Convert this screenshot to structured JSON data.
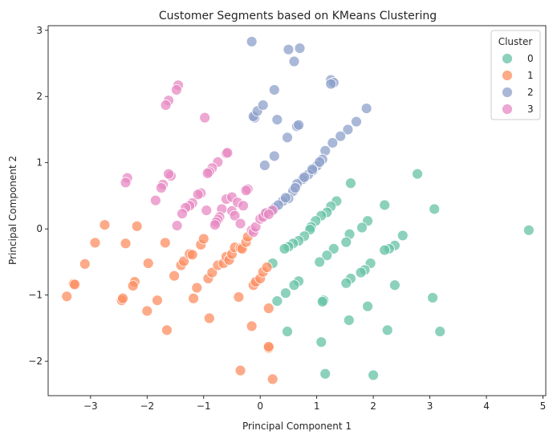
{
  "chart_data": {
    "type": "scatter",
    "title": "Customer Segments based on KMeans Clustering",
    "xlabel": "Principal Component 1",
    "ylabel": "Principal Component 2",
    "xlim": [
      -3.75,
      5.05
    ],
    "ylim": [
      -2.52,
      3.07
    ],
    "x_ticks": [
      -3,
      -2,
      -1,
      0,
      1,
      2,
      3,
      4,
      5
    ],
    "y_ticks": [
      -2,
      -1,
      0,
      1,
      2,
      3
    ],
    "grid": false,
    "legend": {
      "title": "Cluster",
      "placement": "top-right"
    },
    "series": [
      {
        "name": "0",
        "color": "#66c2a5",
        "points": [
          [
            4.75,
            -0.02
          ],
          [
            2.78,
            0.83
          ],
          [
            3.08,
            0.3
          ],
          [
            3.05,
            -1.04
          ],
          [
            3.18,
            -1.55
          ],
          [
            2.38,
            -0.85
          ],
          [
            2.25,
            -1.53
          ],
          [
            2.2,
            0.36
          ],
          [
            2.52,
            -0.1
          ],
          [
            2.38,
            -0.25
          ],
          [
            2.28,
            -0.3
          ],
          [
            2.2,
            -0.32
          ],
          [
            1.95,
            -0.52
          ],
          [
            1.9,
            0.12
          ],
          [
            1.8,
            0.02
          ],
          [
            1.85,
            -0.62
          ],
          [
            1.78,
            -0.66
          ],
          [
            1.9,
            -1.17
          ],
          [
            2.0,
            -2.21
          ],
          [
            1.58,
            -0.08
          ],
          [
            1.52,
            -0.2
          ],
          [
            1.6,
            -0.75
          ],
          [
            1.52,
            -0.82
          ],
          [
            1.6,
            0.69
          ],
          [
            1.57,
            -1.38
          ],
          [
            1.35,
            0.42
          ],
          [
            1.25,
            0.34
          ],
          [
            1.18,
            0.25
          ],
          [
            1.08,
            0.2
          ],
          [
            0.98,
            0.12
          ],
          [
            0.9,
            0.03
          ],
          [
            1.3,
            -0.3
          ],
          [
            1.18,
            -0.4
          ],
          [
            1.05,
            -0.5
          ],
          [
            1.12,
            -1.08
          ],
          [
            1.1,
            -1.1
          ],
          [
            1.08,
            -1.71
          ],
          [
            1.15,
            -2.19
          ],
          [
            0.88,
            -0.01
          ],
          [
            0.78,
            -0.11
          ],
          [
            0.68,
            -0.18
          ],
          [
            0.58,
            -0.22
          ],
          [
            0.5,
            -0.27
          ],
          [
            0.43,
            -0.3
          ],
          [
            0.68,
            -0.79
          ],
          [
            0.6,
            -0.85
          ],
          [
            0.45,
            -0.97
          ],
          [
            0.3,
            -1.09
          ],
          [
            0.48,
            -1.55
          ],
          [
            0.22,
            -0.52
          ]
        ]
      },
      {
        "name": "1",
        "color": "#fc8d62",
        "points": [
          [
            -3.42,
            -1.02
          ],
          [
            -3.3,
            -0.83
          ],
          [
            -3.28,
            -0.84
          ],
          [
            -3.1,
            -0.53
          ],
          [
            -2.92,
            -0.21
          ],
          [
            -2.75,
            0.06
          ],
          [
            -2.45,
            -1.08
          ],
          [
            -2.43,
            -1.05
          ],
          [
            -2.38,
            -0.22
          ],
          [
            -2.22,
            -0.8
          ],
          [
            -2.25,
            -0.86
          ],
          [
            -2.18,
            0.04
          ],
          [
            -2.0,
            -1.24
          ],
          [
            -1.98,
            -0.52
          ],
          [
            -1.82,
            -1.08
          ],
          [
            -1.68,
            -0.21
          ],
          [
            -1.65,
            -1.53
          ],
          [
            -1.52,
            -0.71
          ],
          [
            -1.4,
            -0.55
          ],
          [
            -1.35,
            -0.49
          ],
          [
            -1.25,
            -0.38
          ],
          [
            -1.2,
            -0.39
          ],
          [
            -1.18,
            -1.05
          ],
          [
            -1.12,
            -0.89
          ],
          [
            -1.05,
            -0.24
          ],
          [
            -1.0,
            -0.15
          ],
          [
            -0.9,
            -1.35
          ],
          [
            -0.92,
            -0.75
          ],
          [
            -0.85,
            -0.66
          ],
          [
            -0.75,
            -0.55
          ],
          [
            -0.65,
            -0.52
          ],
          [
            -0.6,
            -0.42
          ],
          [
            -0.55,
            -0.47
          ],
          [
            -0.5,
            -0.38
          ],
          [
            -0.45,
            -0.28
          ],
          [
            -0.35,
            -0.29
          ],
          [
            -0.32,
            -0.3
          ],
          [
            -0.38,
            -1.03
          ],
          [
            -0.35,
            -2.14
          ],
          [
            -0.25,
            -0.2
          ],
          [
            -0.22,
            -0.12
          ],
          [
            -0.15,
            -1.47
          ],
          [
            -0.12,
            -0.85
          ],
          [
            -0.08,
            -0.8
          ],
          [
            0.0,
            -0.75
          ],
          [
            0.05,
            -0.65
          ],
          [
            0.12,
            -0.58
          ],
          [
            0.15,
            -1.8
          ],
          [
            0.15,
            -1.78
          ],
          [
            0.15,
            -1.2
          ],
          [
            0.22,
            -2.27
          ]
        ]
      },
      {
        "name": "2",
        "color": "#8da0cb",
        "points": [
          [
            -0.15,
            2.83
          ],
          [
            0.5,
            2.71
          ],
          [
            0.7,
            2.73
          ],
          [
            0.6,
            2.53
          ],
          [
            1.25,
            2.25
          ],
          [
            1.3,
            2.21
          ],
          [
            0.25,
            2.1
          ],
          [
            1.25,
            2.19
          ],
          [
            1.88,
            1.82
          ],
          [
            1.7,
            1.62
          ],
          [
            1.55,
            1.5
          ],
          [
            1.42,
            1.4
          ],
          [
            1.28,
            1.3
          ],
          [
            1.15,
            1.18
          ],
          [
            1.1,
            1.05
          ],
          [
            1.0,
            0.95
          ],
          [
            0.93,
            0.88
          ],
          [
            0.85,
            0.82
          ],
          [
            0.75,
            0.75
          ],
          [
            0.65,
            0.68
          ],
          [
            0.58,
            0.57
          ],
          [
            0.5,
            0.46
          ],
          [
            0.4,
            0.42
          ],
          [
            0.26,
            0.32
          ],
          [
            -0.1,
            1.68
          ],
          [
            -0.12,
            1.7
          ],
          [
            -0.05,
            1.78
          ],
          [
            0.05,
            1.87
          ],
          [
            0.3,
            1.65
          ],
          [
            0.48,
            1.38
          ],
          [
            0.65,
            1.55
          ],
          [
            0.68,
            1.57
          ],
          [
            0.25,
            1.1
          ],
          [
            0.08,
            0.96
          ],
          [
            1.05,
            1.01
          ],
          [
            0.92,
            0.9
          ],
          [
            0.78,
            0.78
          ],
          [
            0.62,
            0.62
          ],
          [
            0.45,
            0.47
          ],
          [
            0.32,
            0.36
          ],
          [
            0.2,
            0.28
          ],
          [
            0.08,
            0.22
          ]
        ]
      },
      {
        "name": "3",
        "color": "#e78ac3",
        "points": [
          [
            -1.45,
            2.17
          ],
          [
            -1.48,
            2.1
          ],
          [
            -1.62,
            1.94
          ],
          [
            -1.67,
            1.87
          ],
          [
            -0.98,
            1.68
          ],
          [
            -0.6,
            1.14
          ],
          [
            -0.58,
            1.15
          ],
          [
            -0.75,
            1.01
          ],
          [
            -0.85,
            0.92
          ],
          [
            -0.9,
            0.86
          ],
          [
            -0.93,
            0.84
          ],
          [
            -1.05,
            0.54
          ],
          [
            -1.1,
            0.52
          ],
          [
            -1.2,
            0.39
          ],
          [
            -1.25,
            0.35
          ],
          [
            -1.32,
            0.32
          ],
          [
            -1.38,
            0.23
          ],
          [
            -1.47,
            0.05
          ],
          [
            -1.58,
            0.8
          ],
          [
            -1.62,
            0.83
          ],
          [
            -1.72,
            0.67
          ],
          [
            -1.75,
            0.62
          ],
          [
            -1.85,
            0.43
          ],
          [
            -2.35,
            0.77
          ],
          [
            -2.38,
            0.7
          ],
          [
            -0.68,
            0.3
          ],
          [
            -0.72,
            0.18
          ],
          [
            -0.75,
            0.14
          ],
          [
            -0.78,
            0.1
          ],
          [
            -0.8,
            0.06
          ],
          [
            -0.6,
            0.45
          ],
          [
            -0.5,
            0.48
          ],
          [
            -0.4,
            0.4
          ],
          [
            -0.3,
            0.35
          ],
          [
            -0.22,
            0.6
          ],
          [
            -0.25,
            0.58
          ],
          [
            -0.5,
            0.27
          ],
          [
            -0.45,
            0.2
          ],
          [
            -0.35,
            0.08
          ],
          [
            -0.15,
            -0.02
          ],
          [
            -0.12,
            -0.05
          ],
          [
            -0.08,
            0.03
          ],
          [
            0.0,
            0.15
          ],
          [
            0.05,
            0.18
          ],
          [
            0.1,
            0.24
          ],
          [
            0.22,
            0.28
          ],
          [
            0.15,
            0.22
          ],
          [
            -0.95,
            0.28
          ]
        ]
      }
    ]
  }
}
